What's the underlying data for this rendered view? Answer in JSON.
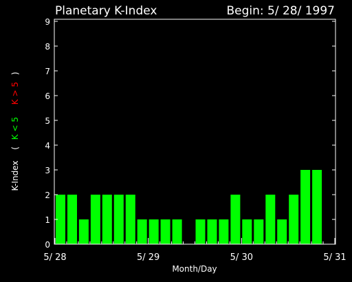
{
  "chart_data": {
    "type": "bar",
    "title": "Planetary K-Index",
    "begin_label": "Begin: 5/ 28/ 1997",
    "xlabel": "Month/Day",
    "ylabel": {
      "main": "K-Index",
      "open_paren": "(",
      "low_label": "K < 5",
      "high_label": "K > 5",
      "close_paren": ")"
    },
    "x_ticks": [
      "5/ 28",
      "5/ 29",
      "5/ 30",
      "5/ 31"
    ],
    "y_ticks": [
      "0",
      "1",
      "2",
      "3",
      "4",
      "5",
      "6",
      "7",
      "8",
      "9"
    ],
    "ylim": [
      0,
      9
    ],
    "interval_hours": 3,
    "values": [
      2,
      2,
      1,
      2,
      2,
      2,
      2,
      1,
      1,
      1,
      1,
      0,
      1,
      1,
      1,
      2,
      1,
      1,
      2,
      1,
      2,
      3,
      3,
      0
    ],
    "grid": false,
    "colors": {
      "background": "#000000",
      "axes": "#ffffff",
      "bar_low": "#00ff00",
      "bar_high": "#ff0000",
      "low_label": "#00ff00",
      "high_label": "#ff0000"
    }
  }
}
